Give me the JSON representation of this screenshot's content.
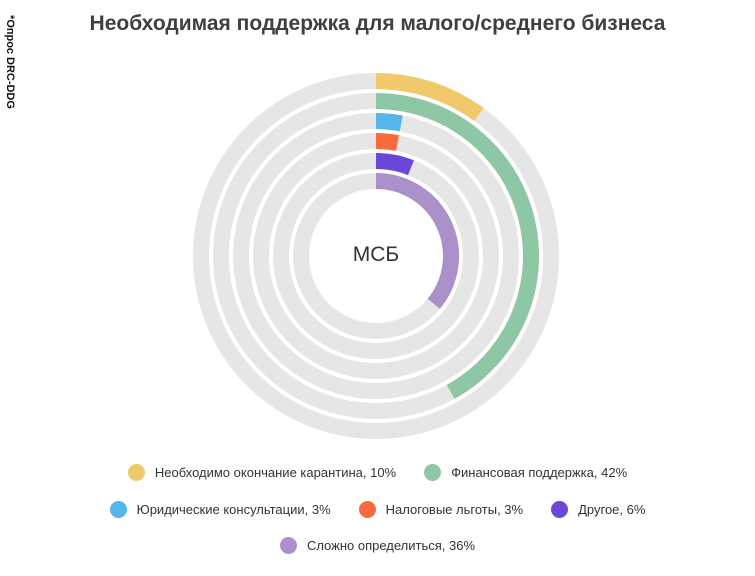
{
  "source_note": "*Опрос DRC-DDG",
  "chart_data": {
    "type": "radial-bar",
    "title": "Необходимая поддержка для малого/среднего бизнеса",
    "center_label": "МСБ",
    "unit": "%",
    "series": [
      {
        "name": "Необходимо окончание карантина",
        "value": 10,
        "color": "#f0ca6a",
        "legend": "Необходимо окончание карантина, 10%"
      },
      {
        "name": "Финансовая поддержка",
        "value": 42,
        "color": "#8ec7a4",
        "legend": "Финансовая поддержка, 42%"
      },
      {
        "name": "Юридические консультации",
        "value": 3,
        "color": "#55b6e9",
        "legend": "Юридические консультации, 3%"
      },
      {
        "name": "Налоговые льготы",
        "value": 3,
        "color": "#fb6a3e",
        "legend": "Налоговые льготы, 3%"
      },
      {
        "name": "Другое",
        "value": 6,
        "color": "#6a47d8",
        "legend": "Другое, 6%"
      },
      {
        "name": "Сложно определиться",
        "value": 36,
        "color": "#ab90c9",
        "legend": "Сложно определиться, 36%"
      }
    ],
    "track_color": "#e6e6e6"
  }
}
